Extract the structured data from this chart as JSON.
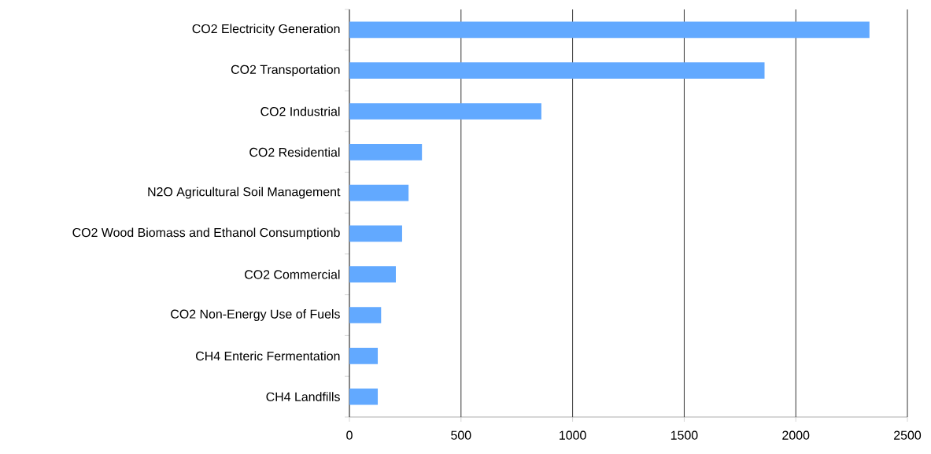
{
  "chart_data": {
    "type": "bar",
    "orientation": "horizontal",
    "categories": [
      "CO2 Electricity Generation",
      "CO2 Transportation",
      "CO2 Industrial",
      "CO2 Residential",
      "N2O Agricultural Soil Management",
      "CO2 Wood Biomass and Ethanol Consumptionb",
      "CO2 Commercial",
      "CO2 Non-Energy Use of Fuels",
      "CH4 Enteric Fermentation",
      "CH4 Landfills"
    ],
    "values": [
      2330,
      1860,
      860,
      325,
      265,
      236,
      208,
      142,
      127,
      127
    ],
    "color": "#62a9ff",
    "xlim": [
      0,
      2500
    ],
    "xticks": [
      0,
      500,
      1000,
      1500,
      2000,
      2500
    ],
    "grid": "x"
  }
}
